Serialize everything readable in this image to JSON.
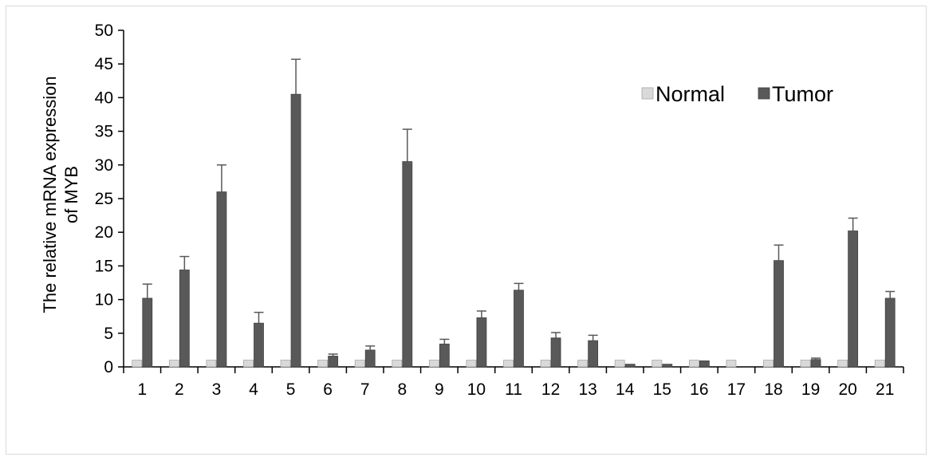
{
  "chart_data": {
    "type": "bar",
    "title": "",
    "xlabel": "",
    "ylabel_lines": [
      "The relative mRNA expression",
      "of MYB"
    ],
    "ylim": [
      0,
      50
    ],
    "yticks": [
      0,
      5,
      10,
      15,
      20,
      25,
      30,
      35,
      40,
      45,
      50
    ],
    "grid": false,
    "legend_position": "top-right",
    "categories": [
      "1",
      "2",
      "3",
      "4",
      "5",
      "6",
      "7",
      "8",
      "9",
      "10",
      "11",
      "12",
      "13",
      "14",
      "15",
      "16",
      "17",
      "18",
      "19",
      "20",
      "21"
    ],
    "series": [
      {
        "name": "Normal",
        "color": "#d9d9d9",
        "values": [
          1,
          1,
          1,
          1,
          1,
          1,
          1,
          1,
          1,
          1,
          1,
          1,
          1,
          1,
          1,
          1,
          1,
          1,
          1,
          1,
          1
        ],
        "errors": [
          0,
          0,
          0,
          0,
          0,
          0,
          0,
          0,
          0,
          0,
          0,
          0,
          0,
          0,
          0,
          0,
          0,
          0,
          0,
          0,
          0
        ]
      },
      {
        "name": "Tumor",
        "color": "#595959",
        "values": [
          10.2,
          14.4,
          26.0,
          6.5,
          40.5,
          1.6,
          2.5,
          30.5,
          3.4,
          7.3,
          11.4,
          4.3,
          3.9,
          0.4,
          0.4,
          0.9,
          0.0,
          15.8,
          1.1,
          20.2,
          10.2
        ],
        "errors": [
          2.1,
          2.0,
          4.0,
          1.6,
          5.2,
          0.3,
          0.6,
          4.8,
          0.7,
          1.0,
          1.0,
          0.8,
          0.8,
          0.0,
          0.0,
          0.0,
          0.0,
          2.3,
          0.2,
          1.9,
          1.0
        ]
      }
    ]
  }
}
